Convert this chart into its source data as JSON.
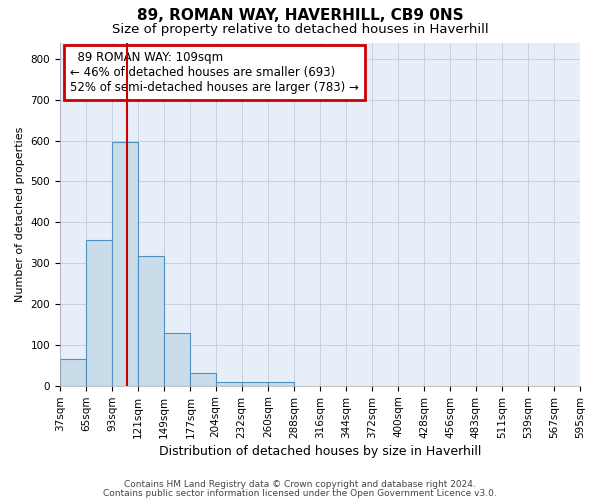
{
  "title1": "89, ROMAN WAY, HAVERHILL, CB9 0NS",
  "title2": "Size of property relative to detached houses in Haverhill",
  "xlabel": "Distribution of detached houses by size in Haverhill",
  "ylabel": "Number of detached properties",
  "footer1": "Contains HM Land Registry data © Crown copyright and database right 2024.",
  "footer2": "Contains public sector information licensed under the Open Government Licence v3.0.",
  "annotation_line1": "89 ROMAN WAY: 109sqm",
  "annotation_line2": "← 46% of detached houses are smaller (693)",
  "annotation_line3": "52% of semi-detached houses are larger (783) →",
  "bar_color": "#c9dcea",
  "bar_edge_color": "#5090be",
  "grid_color": "#c0cce0",
  "redline_color": "#cc0000",
  "annotation_box_color": "#cc0000",
  "background_color": "#e8eef8",
  "tick_labels": [
    "37sqm",
    "65sqm",
    "93sqm",
    "121sqm",
    "149sqm",
    "177sqm",
    "204sqm",
    "232sqm",
    "260sqm",
    "288sqm",
    "316sqm",
    "344sqm",
    "372sqm",
    "400sqm",
    "428sqm",
    "456sqm",
    "483sqm",
    "511sqm",
    "539sqm",
    "567sqm",
    "595sqm"
  ],
  "bin_edges": [
    37,
    65,
    93,
    121,
    149,
    177,
    204,
    232,
    260,
    288,
    316,
    344,
    372,
    400,
    428,
    456,
    483,
    511,
    539,
    567,
    595
  ],
  "bar_heights": [
    65,
    357,
    597,
    318,
    130,
    30,
    10,
    8,
    10,
    0,
    0,
    0,
    0,
    0,
    0,
    0,
    0,
    0,
    0,
    0
  ],
  "ylim": [
    0,
    840
  ],
  "yticks": [
    0,
    100,
    200,
    300,
    400,
    500,
    600,
    700,
    800
  ],
  "redline_x": 109,
  "title1_fontsize": 11,
  "title2_fontsize": 9.5,
  "xlabel_fontsize": 9,
  "ylabel_fontsize": 8,
  "tick_fontsize": 7.5,
  "annotation_fontsize": 8.5,
  "footer_fontsize": 6.5
}
